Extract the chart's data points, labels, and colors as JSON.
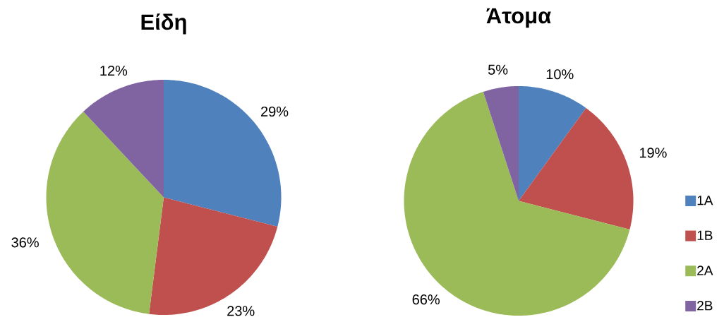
{
  "chart_data": [
    {
      "type": "pie",
      "title": "Είδη",
      "categories": [
        null,
        null,
        null,
        null
      ],
      "values": [
        29,
        23,
        36,
        12
      ],
      "colors": [
        "#4f81bd",
        "#c0504d",
        "#9bbb59",
        "#8064a2"
      ],
      "value_labels": [
        "29%",
        "23%",
        "36%",
        "12%"
      ]
    },
    {
      "type": "pie",
      "title": "Άτομα",
      "categories": [
        "1A",
        "1B",
        "2A",
        "2B"
      ],
      "values": [
        10,
        19,
        66,
        5
      ],
      "colors": [
        "#4f81bd",
        "#c0504d",
        "#9bbb59",
        "#8064a2"
      ],
      "value_labels": [
        "10%",
        "19%",
        "66%",
        "5%"
      ],
      "legend": "right"
    }
  ]
}
